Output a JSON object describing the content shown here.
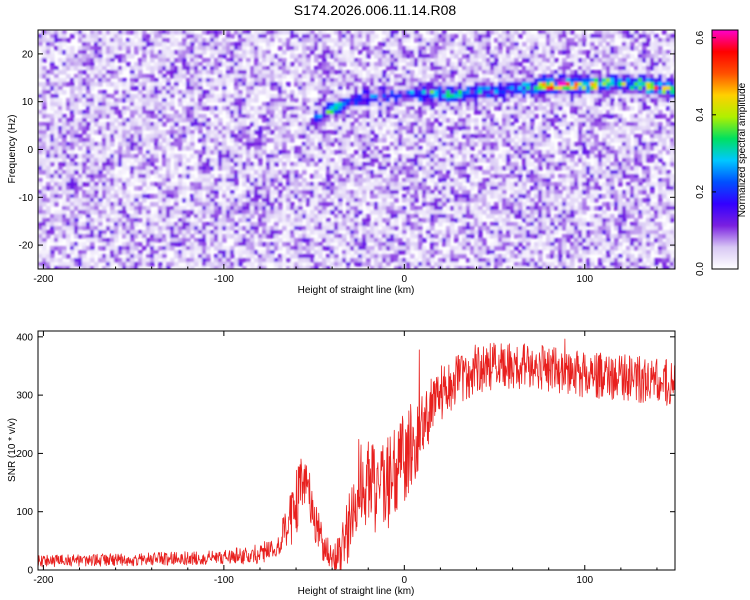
{
  "title": "S174.2026.006.11.14.R08",
  "colors": {
    "snr_line": "#e8201e",
    "spectrogram_low": "#ffffff",
    "spectrogram_high": "#ff00cc"
  },
  "chart_data": [
    {
      "type": "heatmap",
      "name": "spectrogram",
      "xlabel": "Height of straight line (km)",
      "ylabel": "Frequency (Hz)",
      "xlim": [
        -203,
        150
      ],
      "ylim": [
        -25,
        25
      ],
      "xticks": [
        -200,
        -100,
        0,
        100
      ],
      "yticks": [
        -20,
        -10,
        0,
        10,
        20
      ],
      "xtick_labels": [
        "-200",
        "-100",
        "0",
        "100"
      ],
      "ytick_labels": [
        "-20",
        "-10",
        "0",
        "10",
        "20"
      ],
      "colorbar": {
        "label": "Normalized spectral amplitude",
        "range": [
          0.0,
          0.62
        ],
        "ticks": [
          0.0,
          0.2,
          0.4,
          0.6
        ],
        "tick_labels": [
          "0.0",
          "0.2",
          "0.4",
          "0.6"
        ],
        "colormap": [
          "#ffffff",
          "#d8c8f4",
          "#7a20e0",
          "#3300ff",
          "#0050ff",
          "#00c8ff",
          "#00e060",
          "#b0f000",
          "#ffd000",
          "#ff5000",
          "#ff0000",
          "#ff00cc"
        ]
      },
      "signal_track": {
        "x": [
          -50,
          -40,
          -30,
          -20,
          0,
          20,
          40,
          60,
          80,
          100,
          120,
          150
        ],
        "frequency": [
          6,
          8.5,
          10,
          11,
          11.5,
          11.5,
          12,
          12.5,
          13.5,
          13.5,
          14,
          12.5
        ],
        "peak_amplitude": [
          0.15,
          0.28,
          0.18,
          0.15,
          0.15,
          0.3,
          0.25,
          0.2,
          0.55,
          0.45,
          0.3,
          0.5
        ]
      },
      "background_level": 0.06
    },
    {
      "type": "line",
      "name": "snr",
      "xlabel": "Height of straight line (km)",
      "ylabel": "SNR (10 * v/v)",
      "xlim": [
        -203,
        150
      ],
      "ylim": [
        0,
        410
      ],
      "xticks": [
        -200,
        -100,
        0,
        100
      ],
      "yticks": [
        0,
        100,
        200,
        300,
        400
      ],
      "xtick_labels": [
        "-200",
        "-100",
        "0",
        "100"
      ],
      "ytick_labels": [
        "0",
        "100",
        "200",
        "300",
        "400"
      ],
      "trend": {
        "x": [
          -203,
          -150,
          -100,
          -80,
          -70,
          -60,
          -55,
          -50,
          -45,
          -40,
          -35,
          -30,
          -25,
          -20,
          -10,
          0,
          10,
          20,
          30,
          40,
          50,
          60,
          80,
          100,
          120,
          150
        ],
        "y": [
          15,
          18,
          22,
          28,
          40,
          110,
          160,
          90,
          40,
          25,
          30,
          90,
          150,
          130,
          150,
          190,
          250,
          300,
          330,
          345,
          350,
          350,
          345,
          335,
          330,
          320
        ]
      },
      "noise_amplitude": {
        "x": [
          -203,
          -100,
          -70,
          -60,
          -50,
          -40,
          -30,
          -20,
          0,
          20,
          50,
          150
        ],
        "amp": [
          10,
          12,
          20,
          60,
          40,
          20,
          70,
          90,
          80,
          50,
          40,
          40
        ]
      }
    }
  ]
}
